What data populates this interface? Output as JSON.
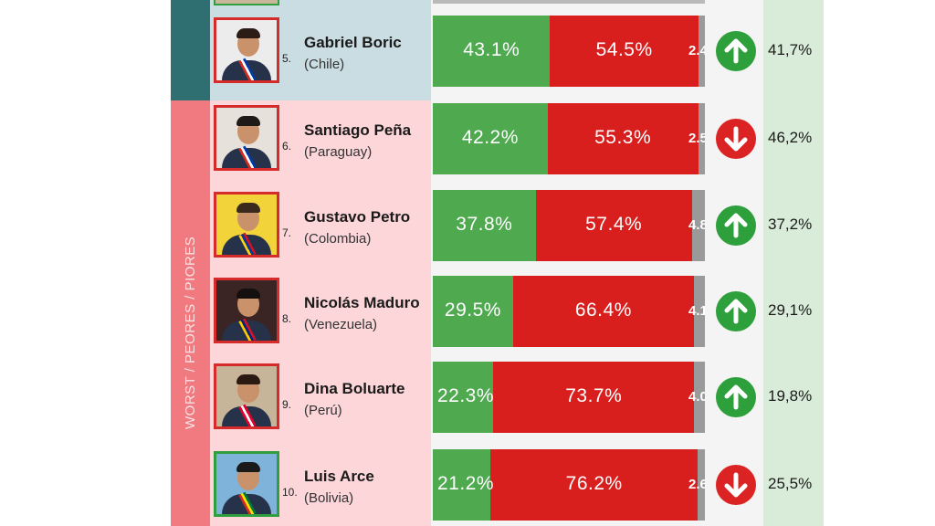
{
  "side_label": "WORST / PEORES / PIORES",
  "colors": {
    "approve": "#4fa94f",
    "disapprove": "#d91e1e",
    "best_band": "#2f6f72",
    "worst_band": "#f07a7f"
  },
  "chart_data": {
    "type": "bar",
    "stacked": true,
    "orientation": "horizontal",
    "categories": [
      "Gabriel Boric",
      "Santiago Peña",
      "Gustavo Petro",
      "Nicolás Maduro",
      "Dina Boluarte",
      "Luis Arce"
    ],
    "series": [
      {
        "values": [
          43.1,
          42.2,
          37.8,
          29.5,
          22.3,
          21.2
        ]
      },
      {
        "values": [
          54.5,
          55.3,
          57.4,
          66.4,
          73.7,
          76.2
        ]
      },
      {
        "values": [
          2.4,
          2.5,
          4.8,
          4.1,
          4.0,
          2.6
        ]
      }
    ]
  },
  "rows": [
    {
      "rank": "5.",
      "name": "Gabriel Boric",
      "country": "(Chile)",
      "approve": 43.1,
      "approve_label": "43.1%",
      "disapprove": 54.5,
      "disapprove_label": "54.5%",
      "other": 2.4,
      "other_label": "2.4",
      "trend": "up",
      "trend_icon": "arrow-up-icon",
      "previous": "41,7%",
      "section": "best",
      "border": "red"
    },
    {
      "rank": "6.",
      "name": "Santiago Peña",
      "country": "(Paraguay)",
      "approve": 42.2,
      "approve_label": "42.2%",
      "disapprove": 55.3,
      "disapprove_label": "55.3%",
      "other": 2.5,
      "other_label": "2.5",
      "trend": "down",
      "trend_icon": "arrow-down-icon",
      "previous": "46,2%",
      "section": "worst",
      "border": "red"
    },
    {
      "rank": "7.",
      "name": "Gustavo Petro",
      "country": "(Colombia)",
      "approve": 37.8,
      "approve_label": "37.8%",
      "disapprove": 57.4,
      "disapprove_label": "57.4%",
      "other": 4.8,
      "other_label": "4.8",
      "trend": "up",
      "trend_icon": "arrow-up-icon",
      "previous": "37,2%",
      "section": "worst",
      "border": "red"
    },
    {
      "rank": "8.",
      "name": "Nicolás Maduro",
      "country": "(Venezuela)",
      "approve": 29.5,
      "approve_label": "29.5%",
      "disapprove": 66.4,
      "disapprove_label": "66.4%",
      "other": 4.1,
      "other_label": "4.1",
      "trend": "up",
      "trend_icon": "arrow-up-icon",
      "previous": "29,1%",
      "section": "worst",
      "border": "red"
    },
    {
      "rank": "9.",
      "name": "Dina Boluarte",
      "country": "(Perú)",
      "approve": 22.3,
      "approve_label": "22.3%",
      "disapprove": 73.7,
      "disapprove_label": "73.7%",
      "other": 4.0,
      "other_label": "4.0",
      "trend": "up",
      "trend_icon": "arrow-up-icon",
      "previous": "19,8%",
      "section": "worst",
      "border": "red"
    },
    {
      "rank": "10.",
      "name": "Luis Arce",
      "country": "(Bolivia)",
      "approve": 21.2,
      "approve_label": "21.2%",
      "disapprove": 76.2,
      "disapprove_label": "76.2%",
      "other": 2.6,
      "other_label": "2.6",
      "trend": "down",
      "trend_icon": "arrow-down-icon",
      "previous": "25,5%",
      "section": "worst",
      "border": "green"
    }
  ]
}
